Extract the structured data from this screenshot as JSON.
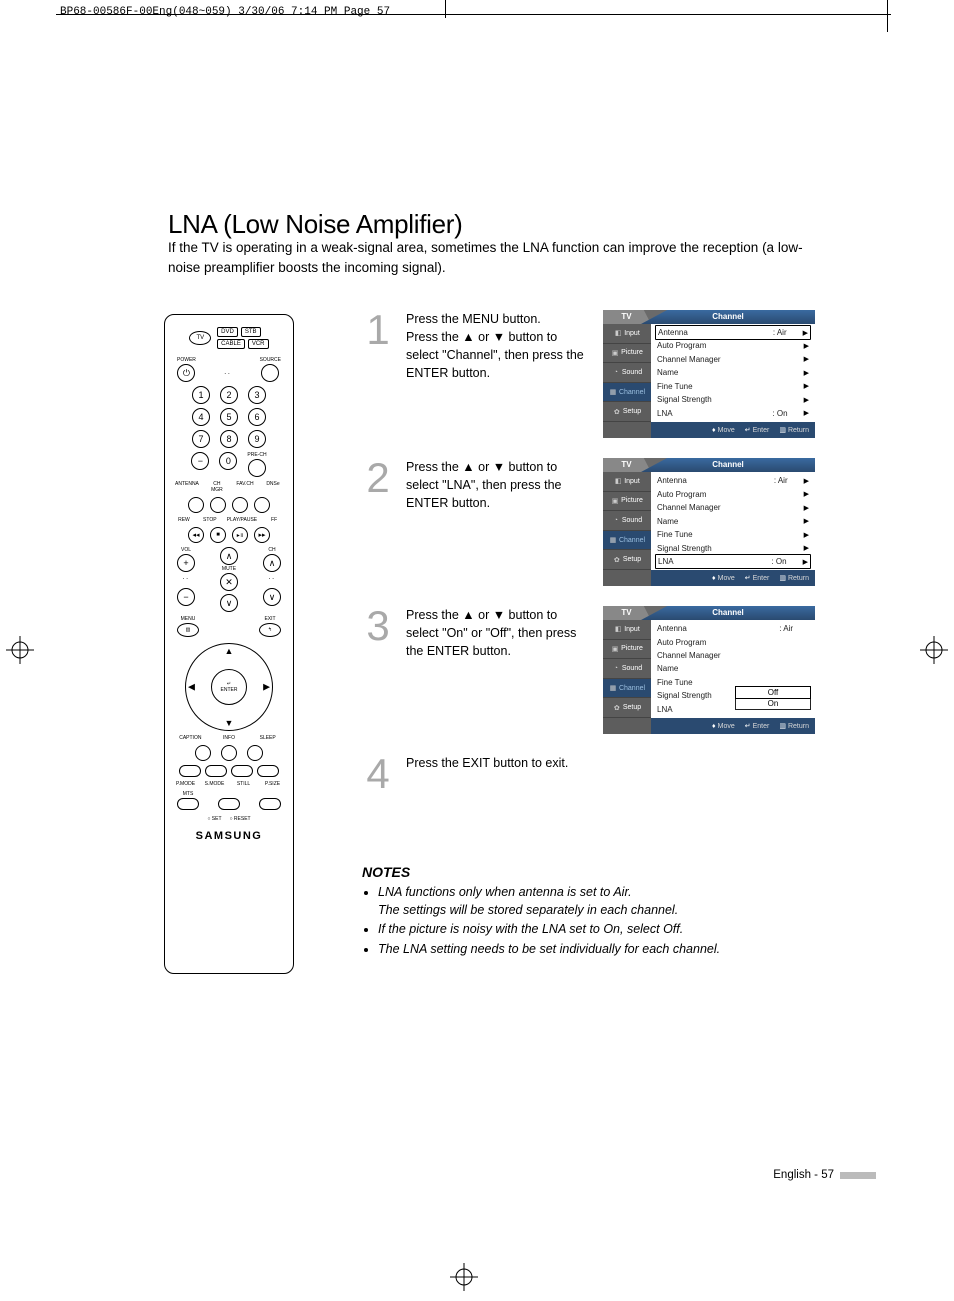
{
  "header": "BP68-00586F-00Eng(048~059)  3/30/06  7:14 PM  Page 57",
  "title": "LNA (Low Noise Amplifier)",
  "intro": "If the TV is operating in a weak-signal area, sometimes the LNA function can improve the reception (a low-noise preamplifier boosts the incoming signal).",
  "remote": {
    "top_btns": [
      "DVD",
      "STB"
    ],
    "top_btns2": [
      "CABLE",
      "VCR"
    ],
    "tv": "TV",
    "power": "POWER",
    "source": "SOURCE",
    "numbers": [
      "1",
      "2",
      "3",
      "4",
      "5",
      "6",
      "7",
      "8",
      "9",
      "0"
    ],
    "dash": "−",
    "pre_ch": "PRE-CH",
    "row1": [
      "ANTENNA",
      "CH MGR",
      "FAV.CH",
      "DNSe"
    ],
    "row2": [
      "REW",
      "STOP",
      "PLAY/PAUSE",
      "FF"
    ],
    "vol": "VOL",
    "ch": "CH",
    "mute": "MUTE",
    "menu": "MENU",
    "exit": "EXIT",
    "enter_top": "↵",
    "enter": "ENTER",
    "row3": [
      "CAPTION",
      "INFO",
      "SLEEP"
    ],
    "row4": [
      "P.MODE",
      "S.MODE",
      "STILL",
      "P.SIZE"
    ],
    "mts": "MTS",
    "set": "○ SET",
    "reset": "○ RESET",
    "brand": "SAMSUNG"
  },
  "steps": [
    {
      "num": "1",
      "text_l1": "Press the MENU button.",
      "text_l2": "Press the ▲ or ▼ button to select \"Channel\", then press the ENTER button."
    },
    {
      "num": "2",
      "text": "Press the ▲ or ▼ button to select \"LNA\", then press the ENTER button."
    },
    {
      "num": "3",
      "text": "Press the ▲ or ▼ button to select \"On\" or \"Off\", then press the ENTER button."
    },
    {
      "num": "4",
      "text": "Press the EXIT button to exit."
    }
  ],
  "osd": {
    "tv_tab": "TV",
    "main_tab": "Channel",
    "sidebar": [
      "Input",
      "Picture",
      "Sound",
      "Channel",
      "Setup"
    ],
    "list": [
      {
        "label": "Antenna",
        "val": ": Air"
      },
      {
        "label": "Auto Program"
      },
      {
        "label": "Channel Manager"
      },
      {
        "label": "Name"
      },
      {
        "label": "Fine Tune"
      },
      {
        "label": "Signal Strength"
      },
      {
        "label": "LNA",
        "val": ": On"
      }
    ],
    "footer_move": "Move",
    "footer_enter": "Enter",
    "footer_return": "Return",
    "popup": [
      "Off",
      "On"
    ]
  },
  "notes": {
    "title": "NOTES",
    "items": [
      "LNA functions only when antenna is set to Air.<br>The settings will be stored separately in each channel.",
      "If the picture is noisy with the LNA set to On, select Off.",
      "The LNA setting needs to be set individually for each channel."
    ]
  },
  "footer": {
    "text": "English - 57"
  },
  "colors": {
    "step_num": "#a9a9a9",
    "osd_bg": "#6a6a6a",
    "osd_tab": "#2a4a70",
    "osd_sidebar": "#5d5d5d",
    "page_bar": "#bbbbbb"
  }
}
